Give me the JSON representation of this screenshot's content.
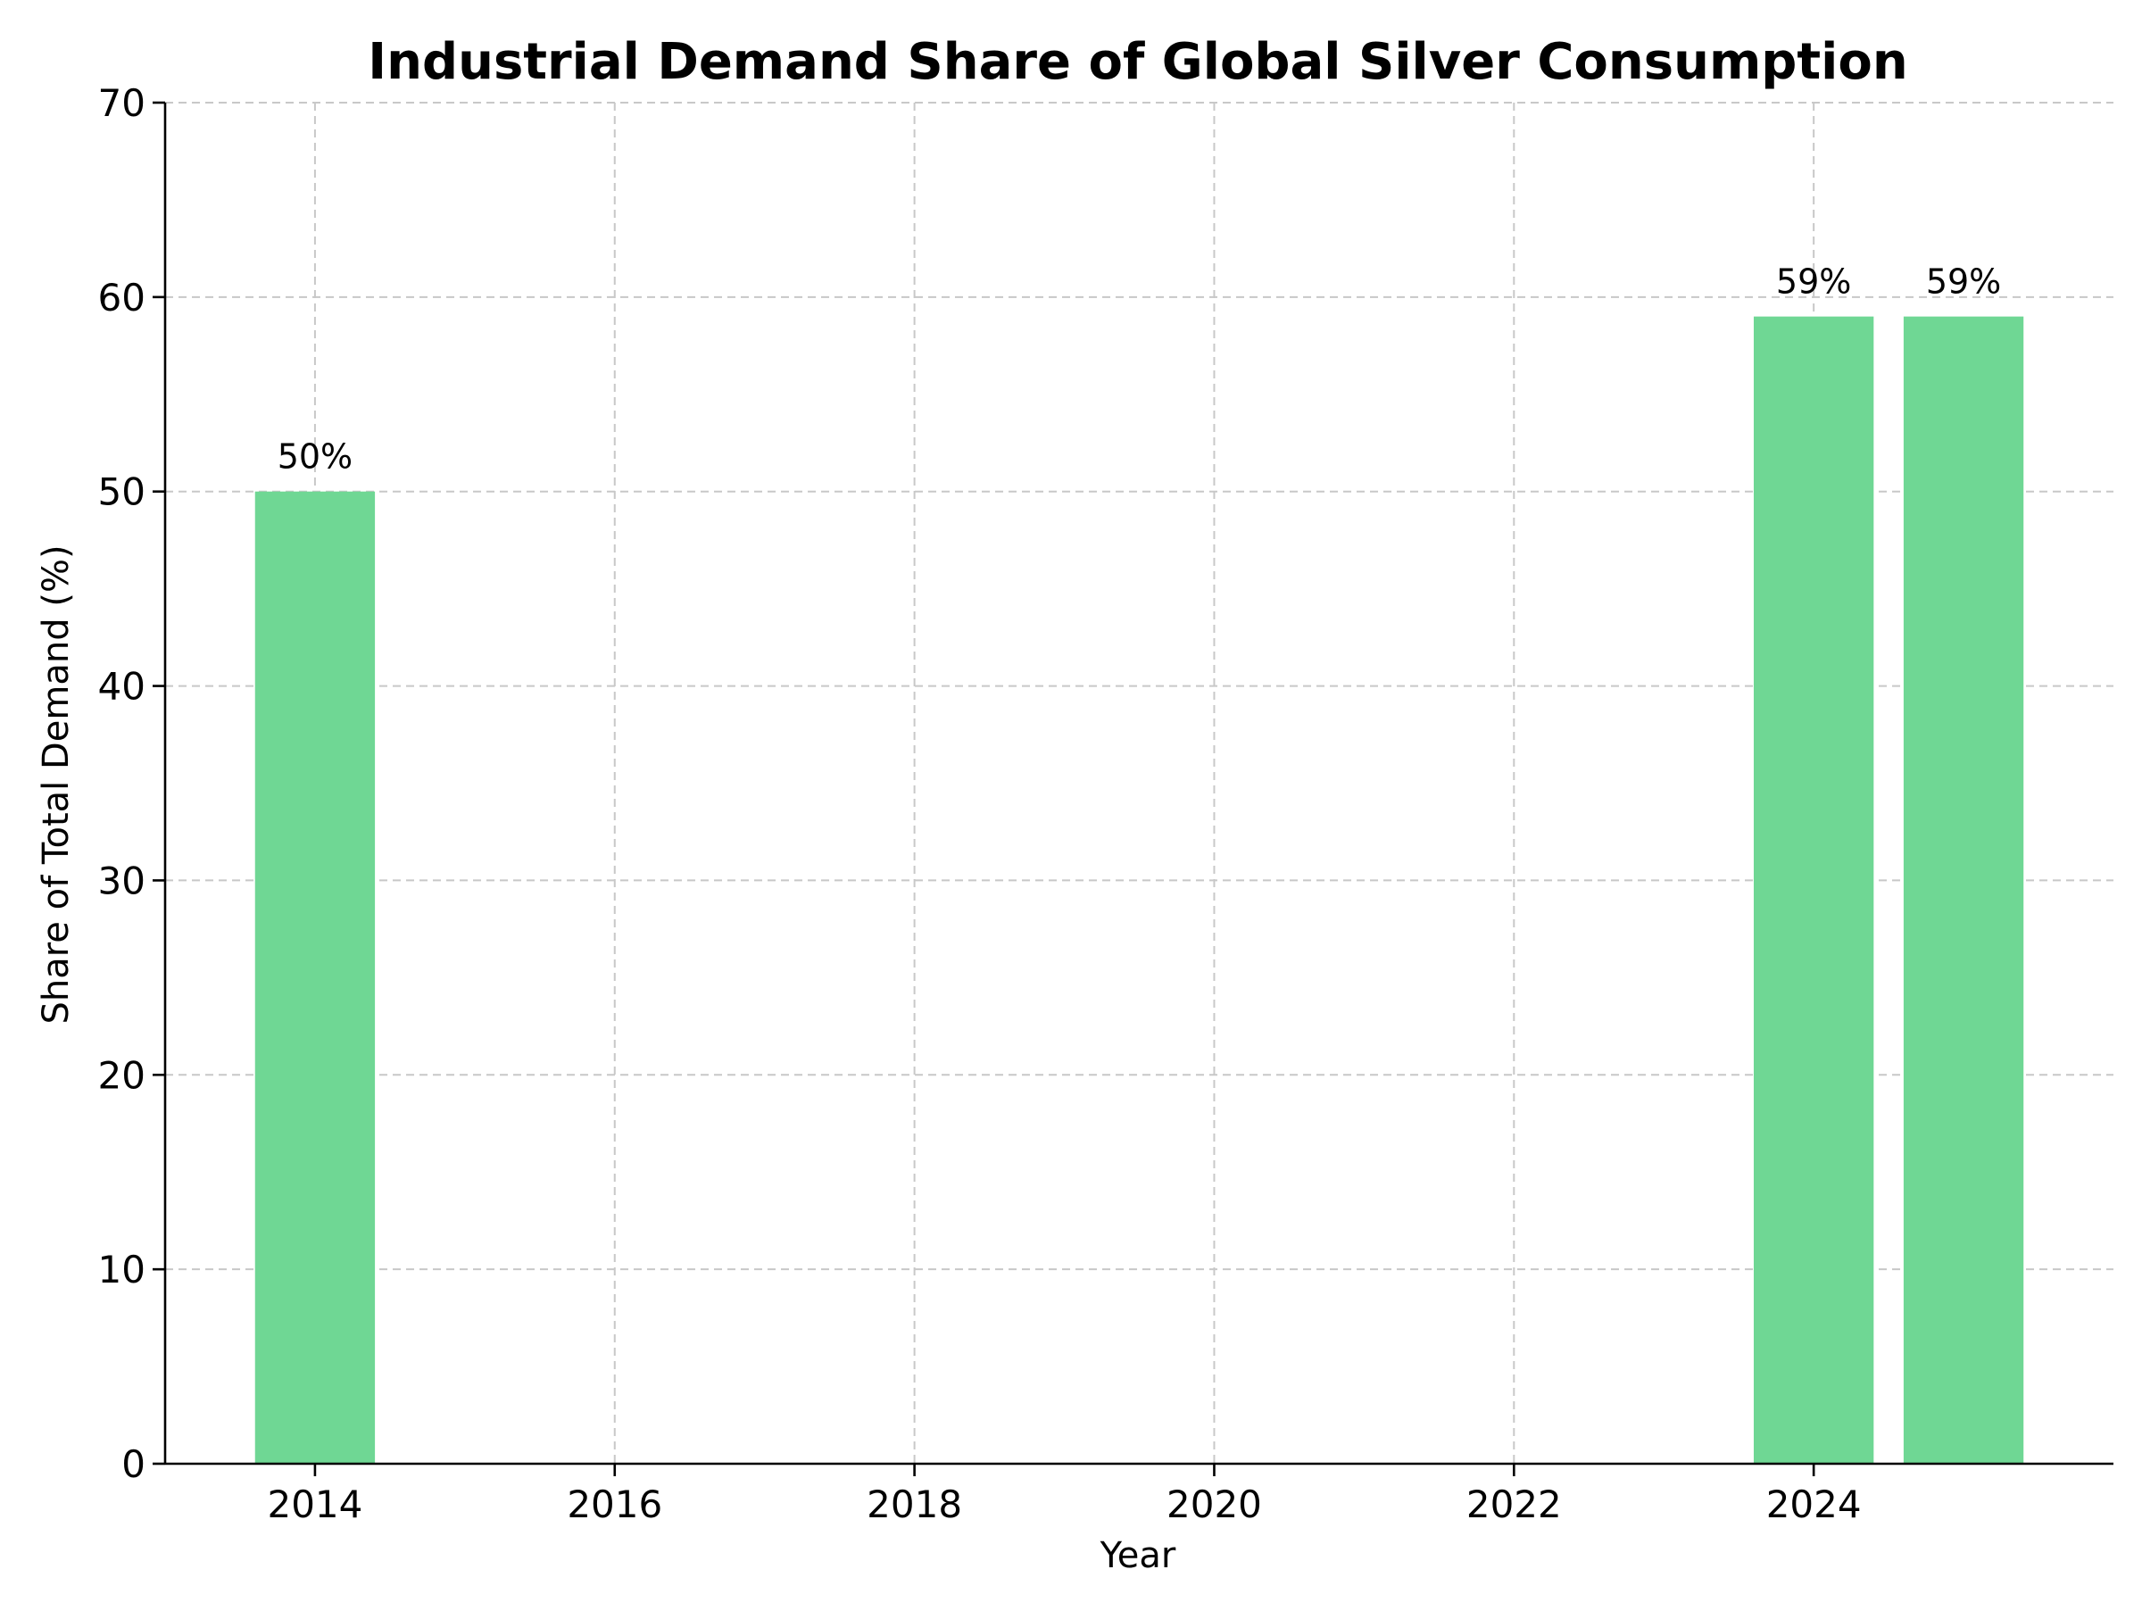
{
  "chart_data": {
    "type": "bar",
    "title": "Industrial Demand Share of Global Silver Consumption",
    "xlabel": "Year",
    "ylabel": "Share of Total Demand (%)",
    "x": [
      2014,
      2024,
      2025
    ],
    "values": [
      50,
      59,
      59
    ],
    "data_labels": [
      "50%",
      "59%",
      "59%"
    ],
    "xlim": [
      2013,
      2026
    ],
    "ylim": [
      0,
      70
    ],
    "xticks": [
      2014,
      2016,
      2018,
      2020,
      2022,
      2024
    ],
    "yticks": [
      0,
      10,
      20,
      30,
      40,
      50,
      60,
      70
    ],
    "bar_width": 0.8,
    "bar_color": "#6fd794",
    "grid": true
  }
}
